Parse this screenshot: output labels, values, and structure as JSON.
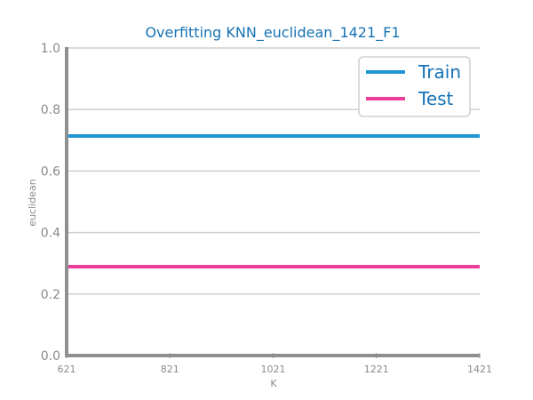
{
  "chart_data": {
    "type": "line",
    "title": "Overfitting KNN_euclidean_1421_F1",
    "xlabel": "K",
    "ylabel": "euclidean",
    "x": [
      621,
      821,
      1021,
      1221,
      1421
    ],
    "xticks": [
      "621",
      "821",
      "1021",
      "1221",
      "1421"
    ],
    "yticks": [
      "0.0",
      "0.2",
      "0.4",
      "0.6",
      "0.8",
      "1.0"
    ],
    "ylim": [
      0,
      1
    ],
    "xlim": [
      621,
      1421
    ],
    "grid": true,
    "legend_position": "top-right",
    "series": [
      {
        "name": "Train",
        "color": "#1f97d4",
        "values": [
          0.714,
          0.714,
          0.714,
          0.714,
          0.714
        ]
      },
      {
        "name": "Test",
        "color": "#ec3d98",
        "values": [
          0.289,
          0.289,
          0.289,
          0.289,
          0.289
        ]
      }
    ]
  }
}
